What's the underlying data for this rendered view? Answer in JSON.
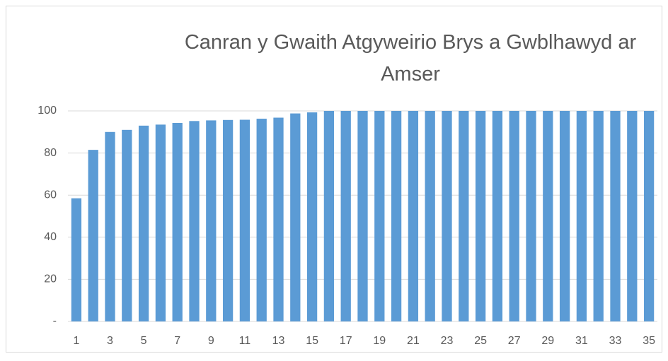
{
  "chart_data": {
    "type": "bar",
    "title": "Canran y Gwaith Atgyweirio Brys a Gwblhawyd ar Amser",
    "categories": [
      "1",
      null,
      "3",
      null,
      "5",
      null,
      "7",
      null,
      "9",
      null,
      "11",
      null,
      "13",
      null,
      "15",
      null,
      "17",
      null,
      "19",
      null,
      "21",
      null,
      "23",
      null,
      "25",
      null,
      "27",
      null,
      "29",
      null,
      "31",
      null,
      "33",
      null,
      "35"
    ],
    "values": [
      58.5,
      81.5,
      90,
      91,
      93,
      93.5,
      94.3,
      95.2,
      95.5,
      95.7,
      95.8,
      96.3,
      96.8,
      98.8,
      99.3,
      100,
      100,
      100,
      100,
      100,
      100,
      100,
      100,
      100,
      100,
      100,
      100,
      100,
      100,
      100,
      100,
      100,
      100,
      100,
      100
    ],
    "color": "#5b9bd5",
    "ylim": [
      0,
      100
    ],
    "yticks": [
      {
        "value": 0,
        "label": "-"
      },
      20,
      40,
      60,
      80,
      100
    ],
    "grid": true
  }
}
